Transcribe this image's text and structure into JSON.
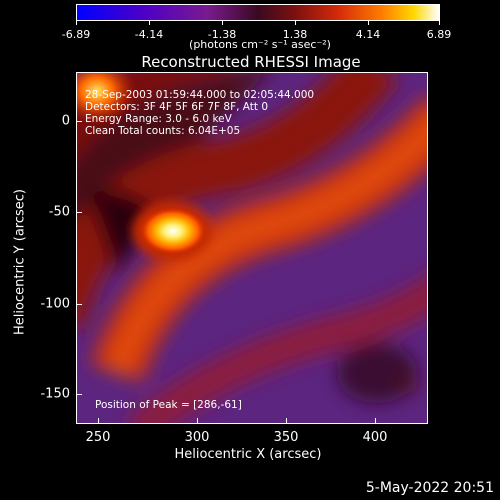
{
  "colorbar": {
    "ticks": [
      "-6.89",
      "-4.14",
      "-1.38",
      "1.38",
      "4.14",
      "6.89"
    ],
    "unit": "(photons cm⁻² s⁻¹ asec⁻²)"
  },
  "image": {
    "title": "Reconstructed RHESSI Image",
    "info": [
      "28-Sep-2003 01:59:44.000 to 02:05:44.000",
      "Detectors: 3F 4F 5F 6F 7F 8F, Att 0",
      "Energy Range: 3.0 - 6.0 keV",
      "Clean    Total counts: 6.04E+05"
    ],
    "peak": "Position of Peak = [286,-61]",
    "x_ticks": [
      "250",
      "300",
      "350",
      "400"
    ],
    "y_ticks": [
      "0",
      "-50",
      "-100",
      "-150"
    ],
    "xlabel": "Heliocentric X (arcsec)",
    "ylabel": "Heliocentric Y (arcsec)"
  },
  "timestamp": "5-May-2022 20:51"
}
